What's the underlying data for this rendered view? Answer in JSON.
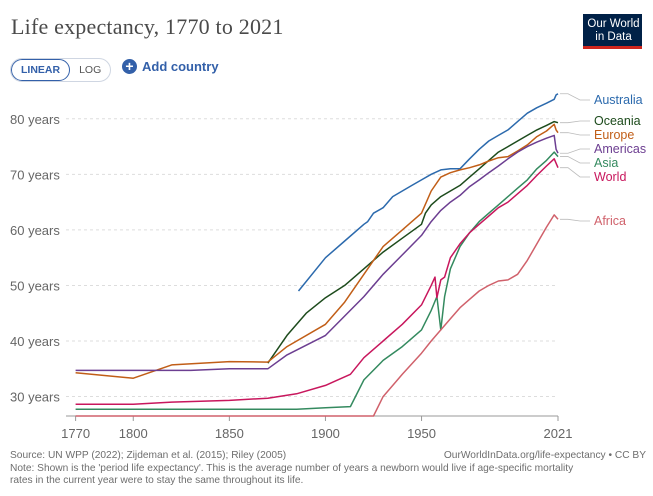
{
  "header": {
    "title": "Life expectancy, 1770 to 2021",
    "logo_line1": "Our World",
    "logo_line2": "in Data"
  },
  "controls": {
    "linear_label": "LINEAR",
    "log_label": "LOG",
    "selected_scale": "linear",
    "add_country_label": "Add country",
    "add_icon": "plus-circle-icon"
  },
  "footer": {
    "source": "Source: UN WPP (2022); Zijdeman et al. (2015); Riley (2005)",
    "url": "OurWorldInData.org/life-expectancy • CC BY",
    "note_line1": "Note: Shown is the 'period life expectancy'. This is the average number of years a newborn would live if age-specific mortality",
    "note_line2": "rates in the current year were to stay the same throughout its life."
  },
  "chart_data": {
    "type": "line",
    "title": "Life expectancy, 1770 to 2021",
    "xlabel": "",
    "ylabel": "",
    "xlim": [
      1765,
      2021
    ],
    "ylim": [
      26.5,
      85
    ],
    "x_ticks": [
      1770,
      1800,
      1850,
      1900,
      1950,
      2021
    ],
    "y_ticks": [
      30,
      40,
      50,
      60,
      70,
      80
    ],
    "y_tick_suffix": " years",
    "grid": "horizontal",
    "legend_placement": "right (labels at line ends)",
    "series": [
      {
        "name": "Australia",
        "color": "#2c6aad",
        "points": [
          [
            1886,
            49
          ],
          [
            1900,
            55
          ],
          [
            1910,
            58
          ],
          [
            1920,
            61
          ],
          [
            1922,
            61.5
          ],
          [
            1925,
            63
          ],
          [
            1930,
            64
          ],
          [
            1935,
            66
          ],
          [
            1940,
            67
          ],
          [
            1945,
            68
          ],
          [
            1950,
            69
          ],
          [
            1955,
            70
          ],
          [
            1960,
            70.8
          ],
          [
            1965,
            71
          ],
          [
            1970,
            71
          ],
          [
            1975,
            72.8
          ],
          [
            1980,
            74.5
          ],
          [
            1985,
            76
          ],
          [
            1990,
            77
          ],
          [
            1995,
            78
          ],
          [
            2000,
            79.5
          ],
          [
            2005,
            81
          ],
          [
            2010,
            82
          ],
          [
            2015,
            82.8
          ],
          [
            2019,
            83.5
          ],
          [
            2020,
            84.3
          ],
          [
            2021,
            84.5
          ]
        ]
      },
      {
        "name": "Oceania",
        "color": "#1d4b1c",
        "points": [
          [
            1870,
            36
          ],
          [
            1880,
            41
          ],
          [
            1890,
            45
          ],
          [
            1900,
            47.8
          ],
          [
            1910,
            50
          ],
          [
            1920,
            53
          ],
          [
            1930,
            56
          ],
          [
            1940,
            58.5
          ],
          [
            1950,
            61
          ],
          [
            1952,
            63
          ],
          [
            1955,
            64.5
          ],
          [
            1960,
            66
          ],
          [
            1965,
            67
          ],
          [
            1970,
            68
          ],
          [
            1975,
            69.5
          ],
          [
            1980,
            71
          ],
          [
            1985,
            72.5
          ],
          [
            1990,
            74
          ],
          [
            1995,
            75
          ],
          [
            2000,
            76
          ],
          [
            2005,
            77
          ],
          [
            2010,
            78
          ],
          [
            2015,
            78.8
          ],
          [
            2019,
            79.5
          ],
          [
            2021,
            79.3
          ]
        ]
      },
      {
        "name": "Europe",
        "color": "#c15e17",
        "points": [
          [
            1770,
            34.3
          ],
          [
            1800,
            33.3
          ],
          [
            1820,
            35.7
          ],
          [
            1850,
            36.3
          ],
          [
            1870,
            36.2
          ],
          [
            1880,
            39
          ],
          [
            1900,
            43
          ],
          [
            1910,
            47
          ],
          [
            1920,
            52
          ],
          [
            1930,
            57
          ],
          [
            1940,
            60
          ],
          [
            1950,
            63
          ],
          [
            1955,
            67
          ],
          [
            1960,
            69.5
          ],
          [
            1965,
            70.3
          ],
          [
            1970,
            70.8
          ],
          [
            1975,
            71.2
          ],
          [
            1980,
            71.7
          ],
          [
            1985,
            72.4
          ],
          [
            1990,
            73
          ],
          [
            1995,
            73.2
          ],
          [
            2000,
            74.2
          ],
          [
            2005,
            75.3
          ],
          [
            2010,
            76.8
          ],
          [
            2015,
            77.8
          ],
          [
            2019,
            79
          ],
          [
            2020,
            78
          ],
          [
            2021,
            77.5
          ]
        ]
      },
      {
        "name": "Americas",
        "color": "#6c3e91",
        "points": [
          [
            1770,
            34.7
          ],
          [
            1800,
            34.7
          ],
          [
            1830,
            34.7
          ],
          [
            1850,
            35
          ],
          [
            1870,
            35
          ],
          [
            1880,
            37.5
          ],
          [
            1900,
            41
          ],
          [
            1910,
            44.5
          ],
          [
            1920,
            48
          ],
          [
            1930,
            52
          ],
          [
            1940,
            55.5
          ],
          [
            1950,
            59
          ],
          [
            1955,
            61.5
          ],
          [
            1960,
            63.5
          ],
          [
            1965,
            65
          ],
          [
            1970,
            66.2
          ],
          [
            1975,
            67.8
          ],
          [
            1980,
            69
          ],
          [
            1985,
            70.3
          ],
          [
            1990,
            71.5
          ],
          [
            1995,
            72.8
          ],
          [
            2000,
            74
          ],
          [
            2005,
            75
          ],
          [
            2010,
            75.8
          ],
          [
            2015,
            76.5
          ],
          [
            2019,
            77
          ],
          [
            2020,
            74.5
          ],
          [
            2021,
            73.8
          ]
        ]
      },
      {
        "name": "Asia",
        "color": "#348a5f",
        "points": [
          [
            1770,
            27.7
          ],
          [
            1800,
            27.7
          ],
          [
            1850,
            27.7
          ],
          [
            1885,
            27.7
          ],
          [
            1900,
            28
          ],
          [
            1913,
            28.2
          ],
          [
            1920,
            33
          ],
          [
            1930,
            36.5
          ],
          [
            1940,
            39
          ],
          [
            1950,
            42
          ],
          [
            1955,
            45.5
          ],
          [
            1958,
            48
          ],
          [
            1960,
            42
          ],
          [
            1962,
            48
          ],
          [
            1965,
            53
          ],
          [
            1970,
            57
          ],
          [
            1975,
            59.5
          ],
          [
            1980,
            61.5
          ],
          [
            1985,
            63
          ],
          [
            1990,
            64.5
          ],
          [
            1995,
            66
          ],
          [
            2000,
            67.5
          ],
          [
            2005,
            69
          ],
          [
            2010,
            71
          ],
          [
            2015,
            72.5
          ],
          [
            2019,
            74
          ],
          [
            2021,
            73.2
          ]
        ]
      },
      {
        "name": "World",
        "color": "#c8175d",
        "points": [
          [
            1770,
            28.6
          ],
          [
            1800,
            28.6
          ],
          [
            1820,
            29
          ],
          [
            1850,
            29.3
          ],
          [
            1870,
            29.7
          ],
          [
            1885,
            30.5
          ],
          [
            1900,
            32
          ],
          [
            1913,
            34
          ],
          [
            1920,
            37
          ],
          [
            1930,
            40
          ],
          [
            1940,
            43
          ],
          [
            1950,
            46.5
          ],
          [
            1955,
            50
          ],
          [
            1957,
            51.5
          ],
          [
            1958,
            47.8
          ],
          [
            1960,
            51
          ],
          [
            1962,
            51.5
          ],
          [
            1965,
            55
          ],
          [
            1970,
            57.5
          ],
          [
            1975,
            59.5
          ],
          [
            1980,
            61
          ],
          [
            1985,
            62.5
          ],
          [
            1990,
            64
          ],
          [
            1995,
            65
          ],
          [
            2000,
            66.5
          ],
          [
            2005,
            68
          ],
          [
            2010,
            69.8
          ],
          [
            2015,
            71.5
          ],
          [
            2019,
            72.8
          ],
          [
            2021,
            71.2
          ]
        ]
      },
      {
        "name": "Africa",
        "color": "#d0616b",
        "points": [
          [
            1770,
            26.5
          ],
          [
            1800,
            26.5
          ],
          [
            1850,
            26.5
          ],
          [
            1900,
            26.5
          ],
          [
            1925,
            26.5
          ],
          [
            1930,
            30
          ],
          [
            1940,
            34
          ],
          [
            1950,
            37.8
          ],
          [
            1955,
            40
          ],
          [
            1960,
            42
          ],
          [
            1965,
            44
          ],
          [
            1970,
            46
          ],
          [
            1975,
            47.5
          ],
          [
            1980,
            49
          ],
          [
            1985,
            50
          ],
          [
            1990,
            50.8
          ],
          [
            1995,
            51
          ],
          [
            2000,
            52
          ],
          [
            2005,
            54.5
          ],
          [
            2010,
            57.5
          ],
          [
            2015,
            60.5
          ],
          [
            2019,
            62.7
          ],
          [
            2021,
            61.9
          ]
        ]
      }
    ]
  }
}
